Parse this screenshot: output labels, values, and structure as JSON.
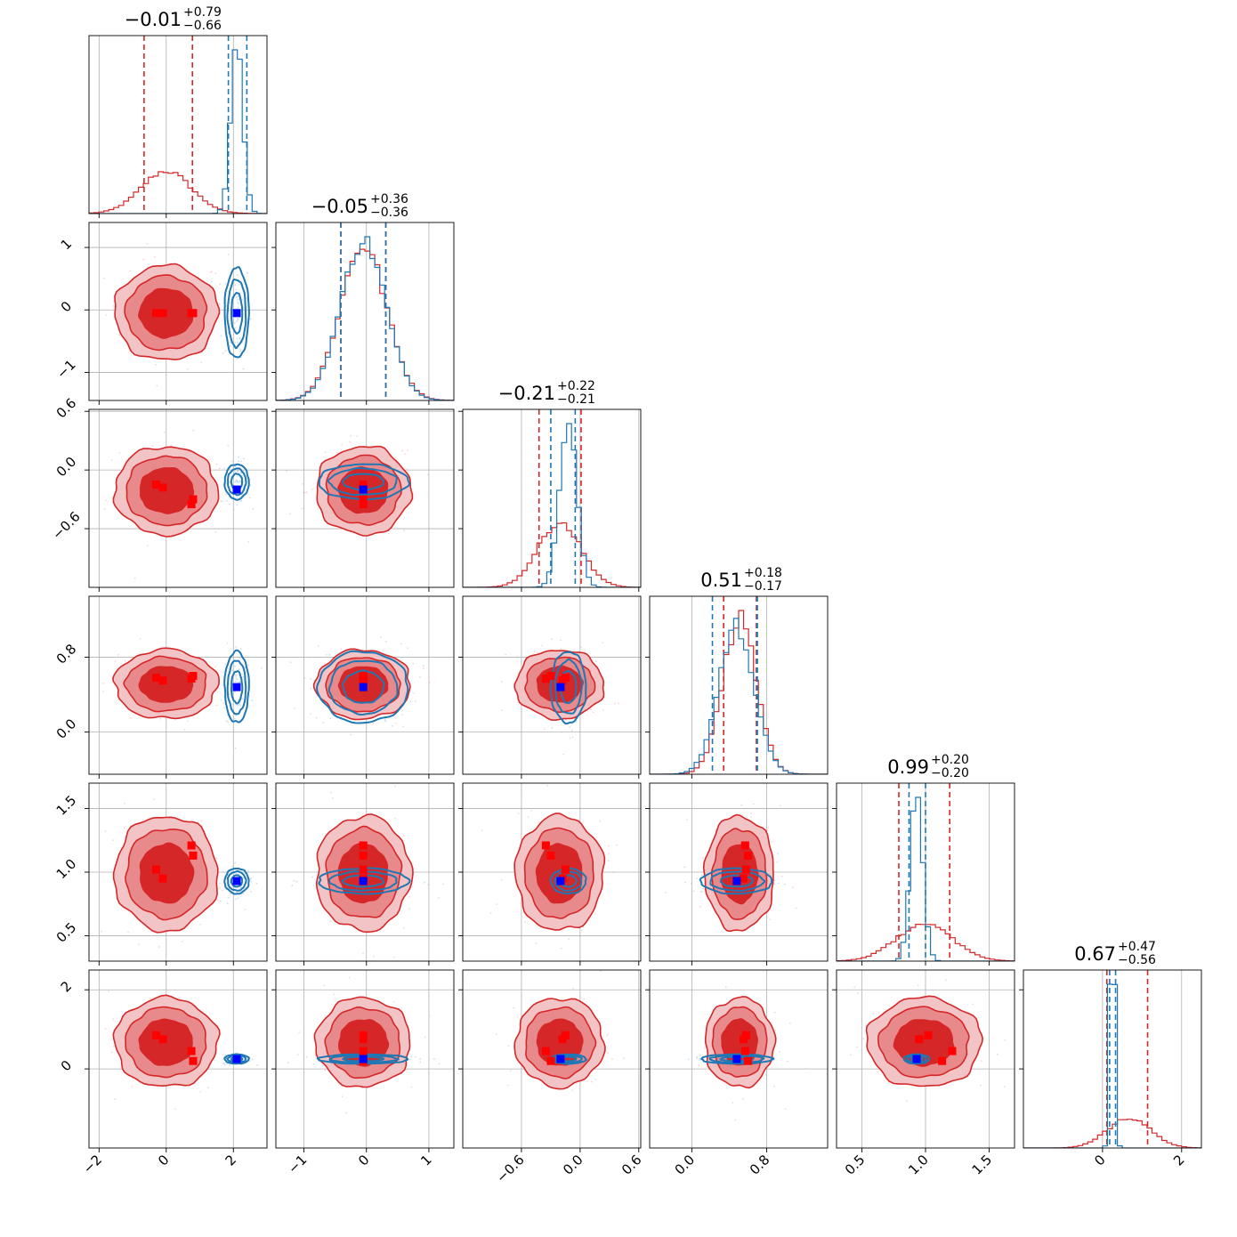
{
  "colors": {
    "red": "#d62728",
    "red_light": "#f2c4c6",
    "red_mid": "#e8898b",
    "blue": "#1f77b4",
    "marker_blue": "#0000ff",
    "marker_red": "#ff0000"
  },
  "chart_data": {
    "type": "corner",
    "n_params": 6,
    "grid": true,
    "series": [
      {
        "color": "#d62728",
        "means": [
          0.0,
          -0.05,
          -0.21,
          0.51,
          0.99,
          0.67
        ],
        "sigmas": [
          0.75,
          0.37,
          0.22,
          0.18,
          0.22,
          0.55
        ],
        "quantile_lines": [
          [
            -0.66,
            0.78
          ],
          [
            -0.41,
            0.31
          ],
          [
            -0.42,
            0.01
          ],
          [
            0.34,
            0.69
          ],
          [
            0.79,
            1.19
          ],
          [
            0.11,
            1.14
          ]
        ]
      },
      {
        "color": "#1f77b4",
        "means": [
          2.1,
          -0.05,
          -0.12,
          0.48,
          0.93,
          0.25
        ],
        "sigmas": [
          0.18,
          0.36,
          0.09,
          0.19,
          0.05,
          0.06
        ],
        "quantile_lines": [
          [
            1.85,
            2.4
          ],
          [
            -0.41,
            0.31
          ],
          [
            -0.3,
            -0.05
          ],
          [
            0.22,
            0.7
          ],
          [
            0.87,
            1.0
          ],
          [
            0.18,
            0.33
          ]
        ]
      }
    ],
    "red_markers": [
      [
        -0.3,
        -0.05,
        -0.15,
        0.58,
        1.02,
        0.85
      ],
      [
        -0.1,
        -0.05,
        -0.18,
        0.55,
        0.95,
        0.75
      ],
      [
        0.75,
        -0.05,
        -0.35,
        0.57,
        1.21,
        0.45
      ],
      [
        0.8,
        -0.05,
        -0.3,
        0.6,
        1.13,
        0.2
      ]
    ],
    "blue_marker": [
      2.1,
      -0.05,
      -0.2,
      0.48,
      0.93,
      0.25
    ],
    "axes": [
      {
        "range": [
          -2.3,
          3.0
        ],
        "ticks": [
          -2,
          0,
          2
        ],
        "tick_labels": [
          "−2",
          "0",
          "2"
        ]
      },
      {
        "range": [
          -1.45,
          1.4
        ],
        "ticks": [
          -1,
          0,
          1
        ],
        "tick_labels": [
          "−1",
          "0",
          "1"
        ]
      },
      {
        "range": [
          -1.2,
          0.62
        ],
        "ticks": [
          -0.6,
          0.0,
          0.6
        ],
        "tick_labels": [
          "−0.6",
          "0.0",
          "0.6"
        ]
      },
      {
        "range": [
          -0.45,
          1.45
        ],
        "ticks": [
          0.0,
          0.8
        ],
        "tick_labels": [
          "0.0",
          "0.8"
        ]
      },
      {
        "range": [
          0.3,
          1.7
        ],
        "ticks": [
          0.5,
          1.0,
          1.5
        ],
        "tick_labels": [
          "0.5",
          "1.0",
          "1.5"
        ]
      },
      {
        "range": [
          -2.0,
          2.5
        ],
        "ticks": [
          0,
          2
        ],
        "tick_labels": [
          "0",
          "2"
        ]
      }
    ],
    "titles": [
      {
        "main": "−0.01",
        "plus": "+0.79",
        "minus": "−0.66"
      },
      {
        "main": "−0.05",
        "plus": "+0.36",
        "minus": "−0.36"
      },
      {
        "main": "−0.21",
        "plus": "+0.22",
        "minus": "−0.21"
      },
      {
        "main": "0.51",
        "plus": "+0.18",
        "minus": "−0.17"
      },
      {
        "main": "0.99",
        "plus": "+0.20",
        "minus": "−0.20"
      },
      {
        "main": "0.67",
        "plus": "+0.47",
        "minus": "−0.56"
      }
    ]
  }
}
